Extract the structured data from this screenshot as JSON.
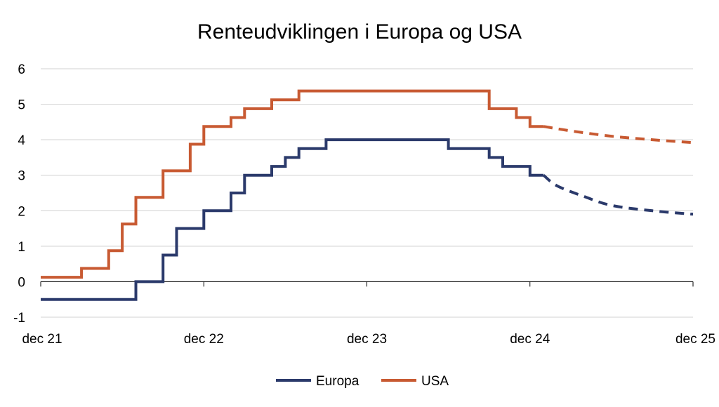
{
  "chart_data": {
    "type": "line",
    "title": "Renteudviklingen i Europa og USA",
    "xlabel": "",
    "ylabel": "",
    "ylim": [
      -1,
      6
    ],
    "yticks": [
      -1,
      0,
      1,
      2,
      3,
      4,
      5,
      6
    ],
    "x_tick_labels": [
      "dec 21",
      "dec 22",
      "dec 23",
      "dec 24",
      "dec 25"
    ],
    "xlim": [
      "2021-12",
      "2025-12"
    ],
    "grid": true,
    "legend_position": "bottom",
    "series": [
      {
        "name": "Europa",
        "color": "#2b3a6b",
        "style": "step",
        "values": [
          {
            "x": "2021-12",
            "y": -0.5
          },
          {
            "x": "2022-07",
            "y": 0.0
          },
          {
            "x": "2022-09",
            "y": 0.75
          },
          {
            "x": "2022-10",
            "y": 1.5
          },
          {
            "x": "2022-12",
            "y": 2.0
          },
          {
            "x": "2023-02",
            "y": 2.5
          },
          {
            "x": "2023-03",
            "y": 3.0
          },
          {
            "x": "2023-05",
            "y": 3.25
          },
          {
            "x": "2023-06",
            "y": 3.5
          },
          {
            "x": "2023-07",
            "y": 3.75
          },
          {
            "x": "2023-09",
            "y": 4.0
          },
          {
            "x": "2024-06",
            "y": 3.75
          },
          {
            "x": "2024-09",
            "y": 3.5
          },
          {
            "x": "2024-10",
            "y": 3.25
          },
          {
            "x": "2024-12",
            "y": 3.0
          }
        ],
        "forecast": [
          {
            "x": "2025-01",
            "y": 3.0
          },
          {
            "x": "2025-02",
            "y": 2.7
          },
          {
            "x": "2025-04",
            "y": 2.4
          },
          {
            "x": "2025-06",
            "y": 2.15
          },
          {
            "x": "2025-09",
            "y": 2.0
          },
          {
            "x": "2025-12",
            "y": 1.9
          }
        ]
      },
      {
        "name": "USA",
        "color": "#c85a32",
        "style": "step",
        "values": [
          {
            "x": "2021-12",
            "y": 0.125
          },
          {
            "x": "2022-03",
            "y": 0.375
          },
          {
            "x": "2022-05",
            "y": 0.875
          },
          {
            "x": "2022-06",
            "y": 1.625
          },
          {
            "x": "2022-07",
            "y": 2.375
          },
          {
            "x": "2022-09",
            "y": 3.125
          },
          {
            "x": "2022-11",
            "y": 3.875
          },
          {
            "x": "2022-12",
            "y": 4.375
          },
          {
            "x": "2023-02",
            "y": 4.625
          },
          {
            "x": "2023-03",
            "y": 4.875
          },
          {
            "x": "2023-05",
            "y": 5.125
          },
          {
            "x": "2023-07",
            "y": 5.375
          },
          {
            "x": "2024-09",
            "y": 4.875
          },
          {
            "x": "2024-11",
            "y": 4.625
          },
          {
            "x": "2024-12",
            "y": 4.375
          }
        ],
        "forecast": [
          {
            "x": "2025-01",
            "y": 4.375
          },
          {
            "x": "2025-03",
            "y": 4.25
          },
          {
            "x": "2025-06",
            "y": 4.1
          },
          {
            "x": "2025-09",
            "y": 4.0
          },
          {
            "x": "2025-12",
            "y": 3.92
          }
        ]
      }
    ]
  },
  "colors": {
    "grid": "#d9d9d9",
    "axis": "#000000"
  }
}
